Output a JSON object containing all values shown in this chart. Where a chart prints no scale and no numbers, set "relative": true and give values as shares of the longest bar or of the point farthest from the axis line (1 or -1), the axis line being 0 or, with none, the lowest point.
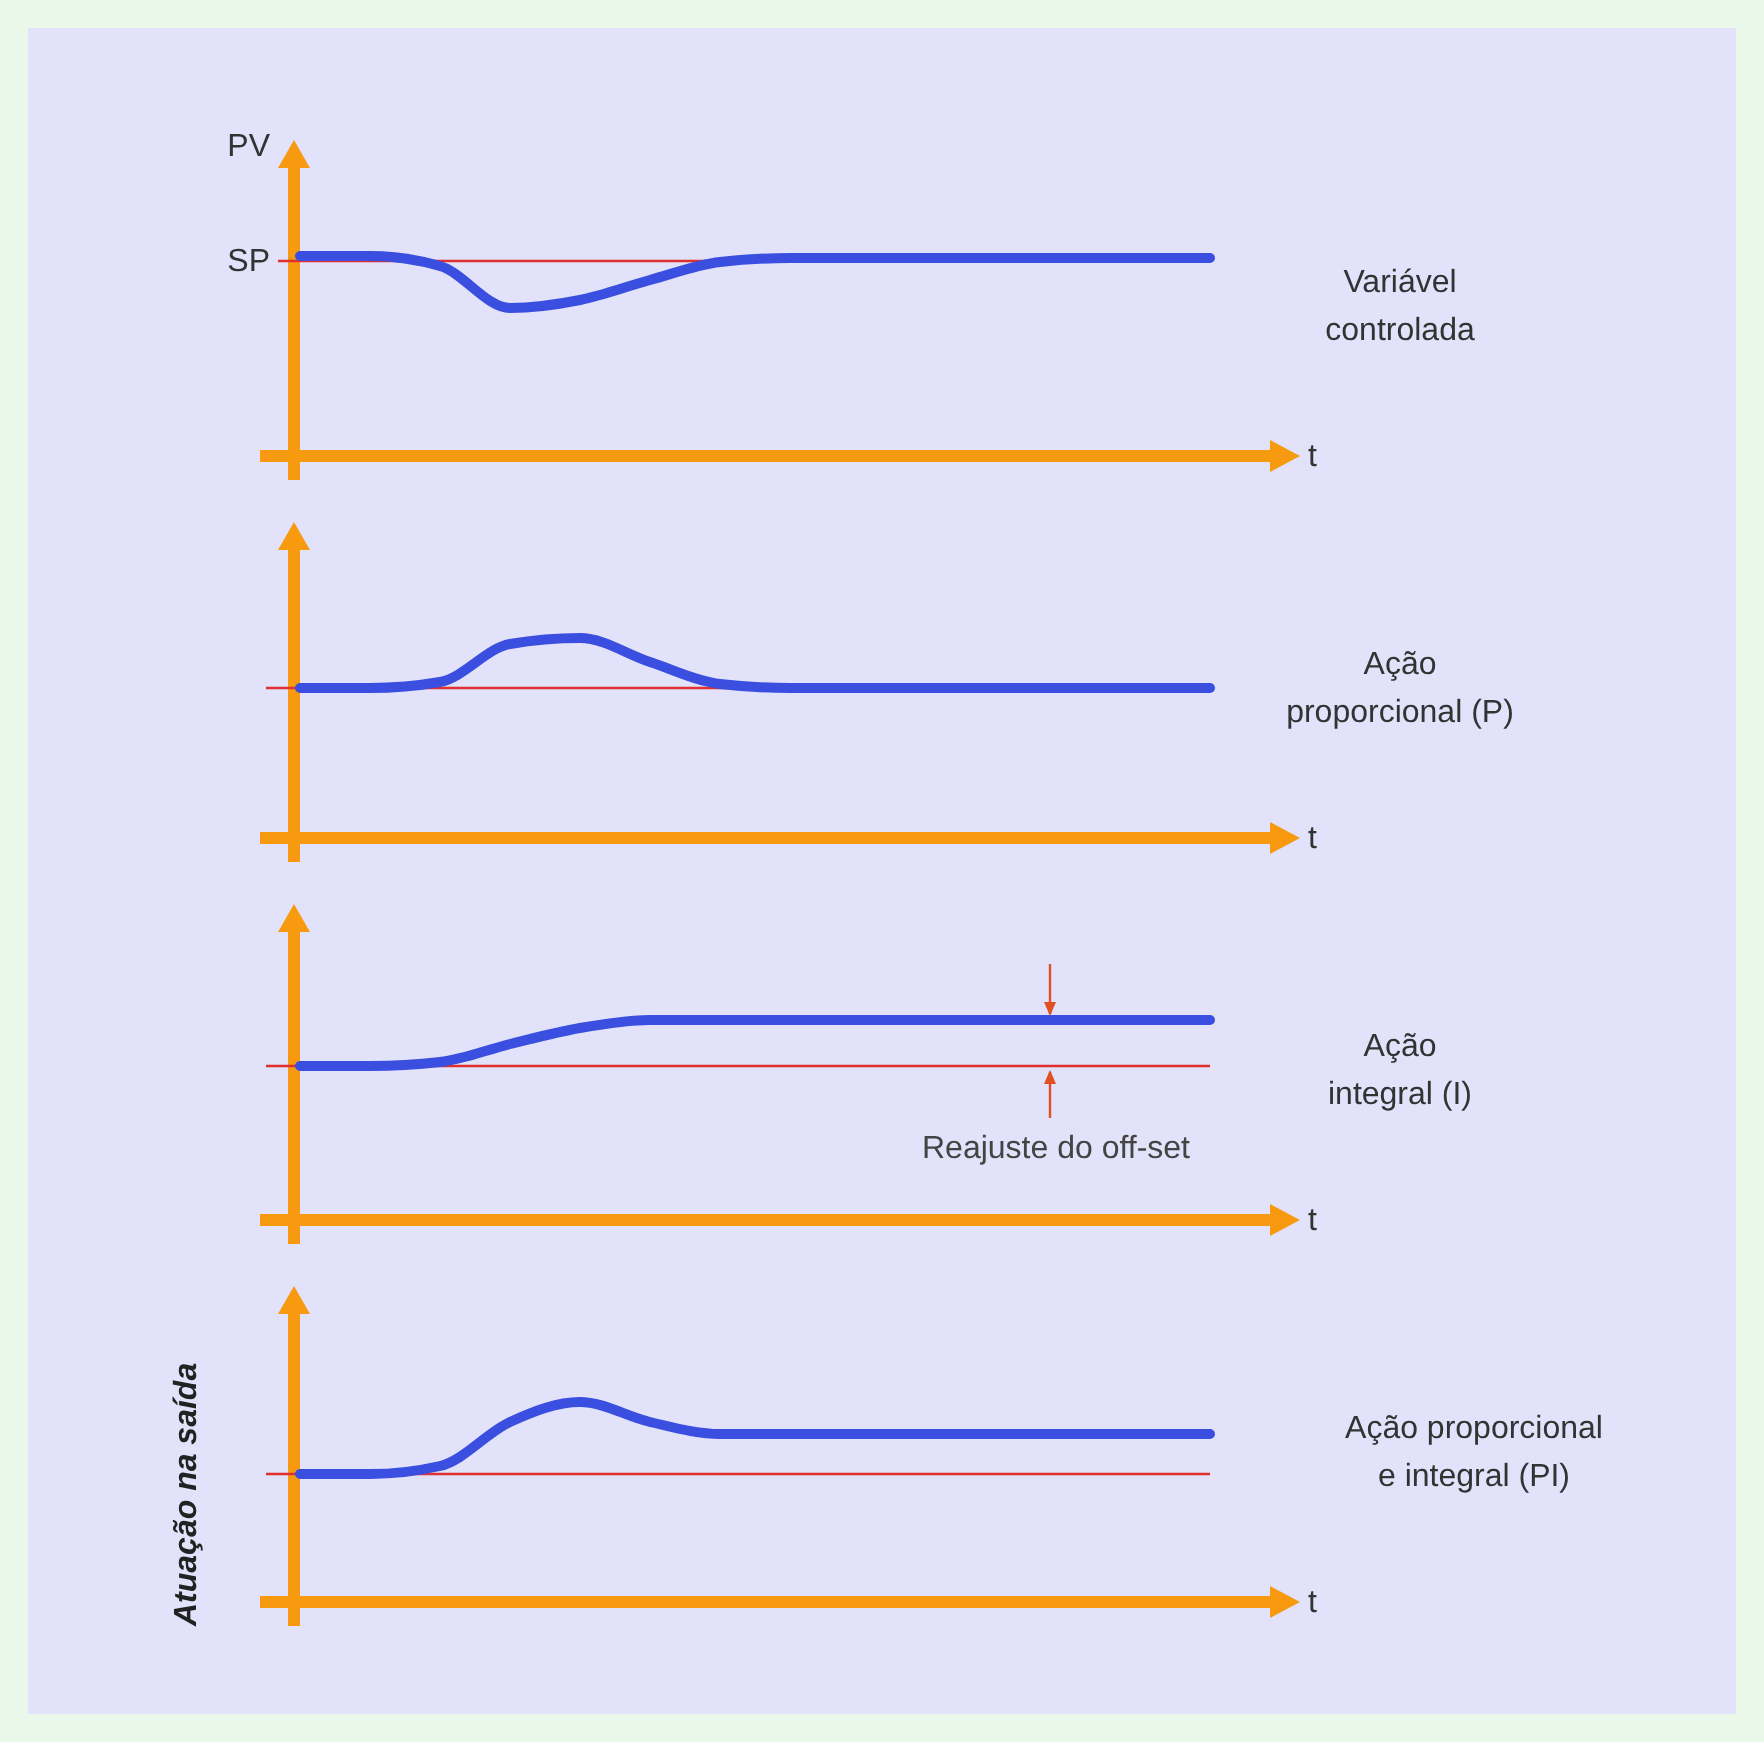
{
  "chart_data": [
    {
      "type": "line",
      "relative": true,
      "annotations": [
        "Variável controlada"
      ],
      "ylabel": "PV",
      "xlabel": "t",
      "categories": [
        null,
        null,
        null,
        null,
        null,
        null,
        null,
        null,
        null,
        null,
        null,
        null,
        null,
        null
      ],
      "series": [
        {
          "color": "#3a4fe0",
          "values": [
            1,
            1,
            0.95,
            0.74,
            0.78,
            0.88,
            0.97,
            0.99,
            0.99,
            0.99,
            0.99,
            0.99,
            0.99,
            0.99
          ]
        }
      ],
      "ref_lines": [
        {
          "axis": "y",
          "value": 0.975,
          "label": "SP",
          "color": "#e03030"
        }
      ]
    },
    {
      "type": "line",
      "relative": true,
      "annotations": [
        "Ação proporcional (P)"
      ],
      "xlabel": "t",
      "categories": [
        null,
        null,
        null,
        null,
        null,
        null,
        null,
        null,
        null,
        null,
        null,
        null,
        null,
        null
      ],
      "series": [
        {
          "color": "#3a4fe0",
          "values": [
            0.75,
            0.75,
            0.78,
            0.97,
            1,
            0.88,
            0.77,
            0.75,
            0.75,
            0.75,
            0.75,
            0.75,
            0.75,
            0.75
          ]
        }
      ],
      "ref_lines": [
        {
          "axis": "y",
          "value": 0.75,
          "color": "#e03030"
        }
      ]
    },
    {
      "type": "line",
      "relative": true,
      "xlabel": "t",
      "categories": [
        null,
        null,
        null,
        null,
        null,
        null,
        null,
        null,
        null,
        null,
        null,
        null,
        null,
        null
      ],
      "series": [
        {
          "color": "#3a4fe0",
          "values": [
            0.77,
            0.77,
            0.79,
            0.88,
            0.96,
            1,
            1,
            1,
            1,
            1,
            1,
            1,
            1,
            1
          ]
        }
      ],
      "ref_lines": [
        {
          "axis": "y",
          "value": 0.77,
          "color": "#e03030"
        }
      ],
      "annotations": [
        "Ação integral (I)",
        "Reajuste do off-set"
      ]
    },
    {
      "type": "line",
      "relative": true,
      "annotations": [
        "Ação proporcional e integral (PI)"
      ],
      "ylabel": "Atuação na saída",
      "xlabel": "t",
      "categories": [
        null,
        null,
        null,
        null,
        null,
        null,
        null,
        null,
        null,
        null,
        null,
        null,
        null,
        null
      ],
      "series": [
        {
          "color": "#3a4fe0",
          "values": [
            0.64,
            0.64,
            0.68,
            0.9,
            1,
            0.9,
            0.84,
            0.84,
            0.84,
            0.84,
            0.84,
            0.84,
            0.84,
            0.84
          ]
        }
      ],
      "ref_lines": [
        {
          "axis": "y",
          "value": 0.64,
          "color": "#e03030"
        }
      ]
    }
  ]
}
